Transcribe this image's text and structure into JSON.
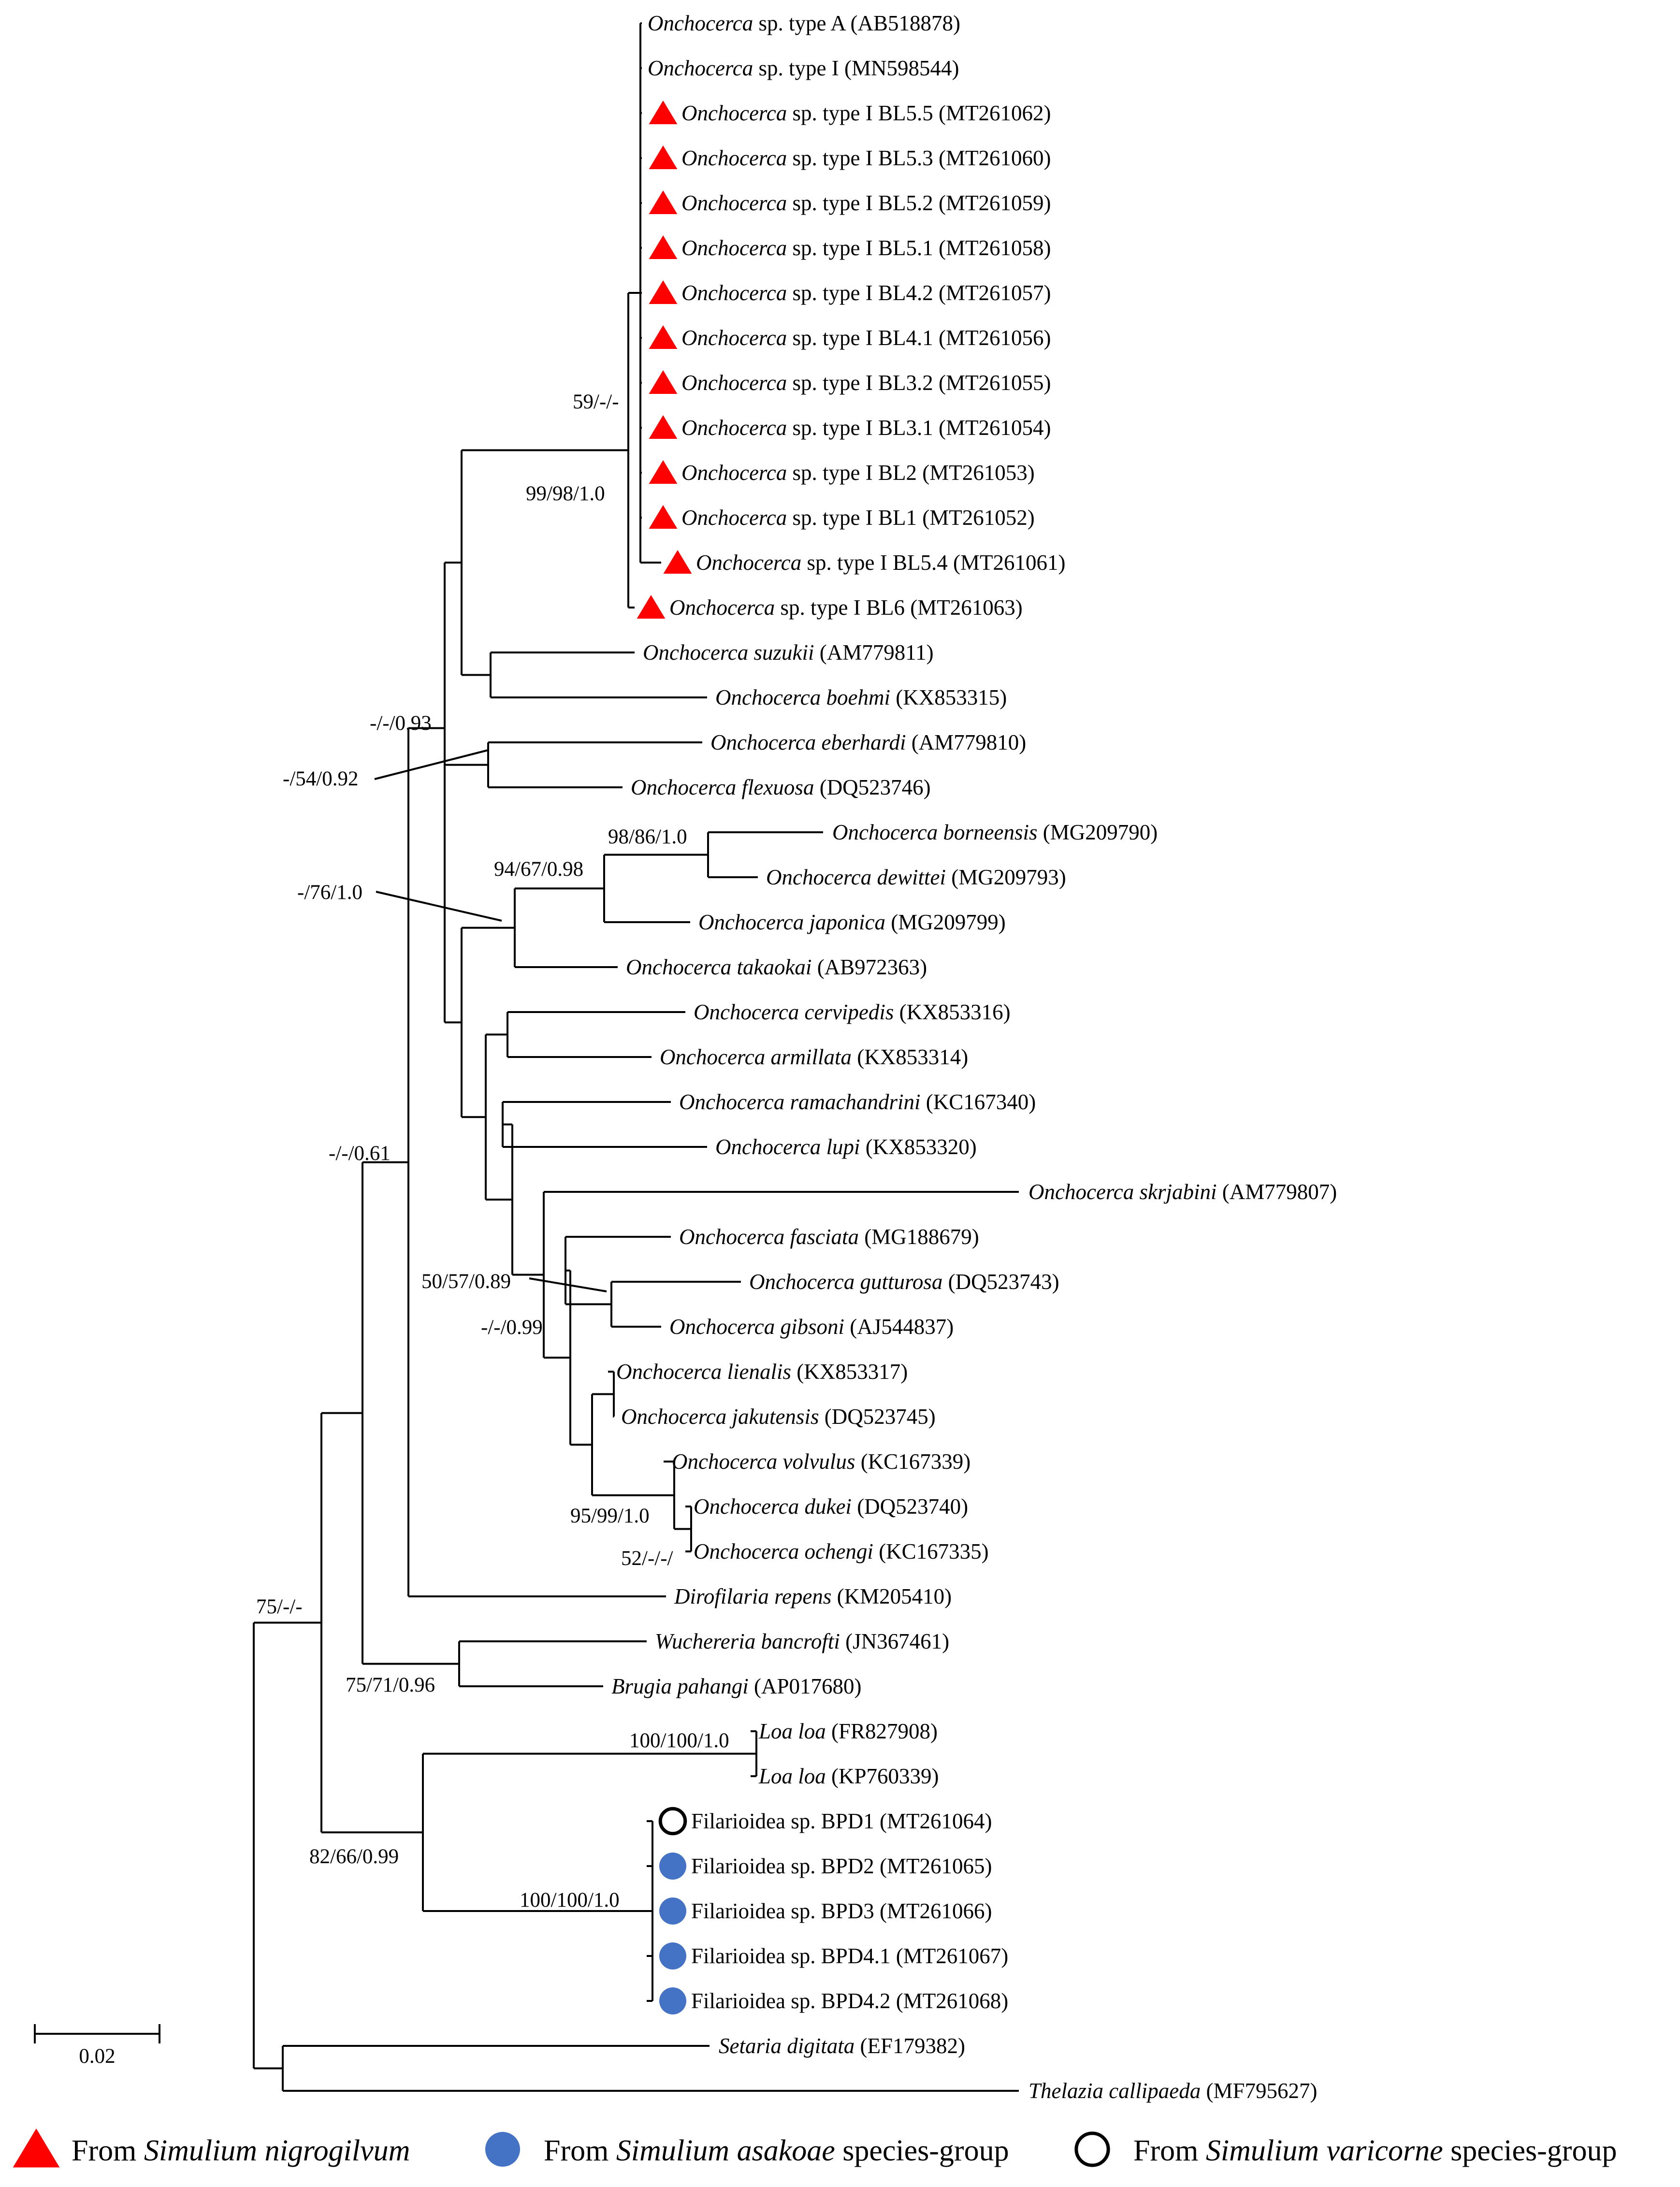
{
  "figure": {
    "kind": "phylogenetic tree",
    "scale_bar_label": "0.02"
  },
  "markers": {
    "nigrogilvum": {
      "shape": "triangle",
      "color": "#ff0000"
    },
    "asakoae": {
      "shape": "filled-circle",
      "color": "#4472c4"
    },
    "varicorne": {
      "shape": "open-circle",
      "color": "#000000"
    }
  },
  "taxa": [
    {
      "italic": "Onchocerca",
      "rest": " sp. type A (AB518878)"
    },
    {
      "italic": "Onchocerca",
      "rest": " sp. type I (MN598544)"
    },
    {
      "italic": "Onchocerca",
      "rest": " sp. type I BL5.5 (MT261062)",
      "marker": "nigrogilvum"
    },
    {
      "italic": "Onchocerca",
      "rest": " sp. type I BL5.3 (MT261060)",
      "marker": "nigrogilvum"
    },
    {
      "italic": "Onchocerca",
      "rest": " sp. type I BL5.2 (MT261059)",
      "marker": "nigrogilvum"
    },
    {
      "italic": "Onchocerca",
      "rest": " sp. type I BL5.1 (MT261058)",
      "marker": "nigrogilvum"
    },
    {
      "italic": "Onchocerca",
      "rest": " sp. type I BL4.2 (MT261057)",
      "marker": "nigrogilvum"
    },
    {
      "italic": "Onchocerca",
      "rest": " sp. type I BL4.1 (MT261056)",
      "marker": "nigrogilvum"
    },
    {
      "italic": "Onchocerca",
      "rest": " sp. type I BL3.2 (MT261055)",
      "marker": "nigrogilvum"
    },
    {
      "italic": "Onchocerca",
      "rest": " sp. type I BL3.1 (MT261054)",
      "marker": "nigrogilvum"
    },
    {
      "italic": "Onchocerca",
      "rest": " sp. type I BL2 (MT261053)",
      "marker": "nigrogilvum"
    },
    {
      "italic": "Onchocerca",
      "rest": " sp. type I BL1 (MT261052)",
      "marker": "nigrogilvum"
    },
    {
      "italic": "Onchocerca",
      "rest": " sp. type I BL5.4 (MT261061)",
      "marker": "nigrogilvum"
    },
    {
      "italic": "Onchocerca",
      "rest": " sp. type I BL6 (MT261063)",
      "marker": "nigrogilvum"
    },
    {
      "italic": "Onchocerca suzukii",
      "rest": " (AM779811)"
    },
    {
      "italic": "Onchocerca boehmi",
      "rest": " (KX853315)"
    },
    {
      "italic": "Onchocerca eberhardi",
      "rest": " (AM779810)"
    },
    {
      "italic": "Onchocerca flexuosa",
      "rest": " (DQ523746)"
    },
    {
      "italic": "Onchocerca borneensis",
      "rest": " (MG209790)"
    },
    {
      "italic": "Onchocerca dewittei",
      "rest": " (MG209793)"
    },
    {
      "italic": "Onchocerca japonica",
      "rest": " (MG209799)"
    },
    {
      "italic": "Onchocerca takaokai",
      "rest": " (AB972363)"
    },
    {
      "italic": "Onchocerca cervipedis",
      "rest": " (KX853316)"
    },
    {
      "italic": "Onchocerca armillata",
      "rest": " (KX853314)"
    },
    {
      "italic": "Onchocerca ramachandrini",
      "rest": " (KC167340)"
    },
    {
      "italic": "Onchocerca lupi",
      "rest": " (KX853320)"
    },
    {
      "italic": "Onchocerca skrjabini",
      "rest": " (AM779807)"
    },
    {
      "italic": "Onchocerca fasciata",
      "rest": " (MG188679)"
    },
    {
      "italic": "Onchocerca gutturosa",
      "rest": " (DQ523743)"
    },
    {
      "italic": "Onchocerca gibsoni",
      "rest": " (AJ544837)"
    },
    {
      "italic": "Onchocerca lienalis",
      "rest": " (KX853317)"
    },
    {
      "italic": "Onchocerca jakutensis",
      "rest": " (DQ523745)"
    },
    {
      "italic": "Onchocerca volvulus",
      "rest": " (KC167339)"
    },
    {
      "italic": "Onchocerca dukei",
      "rest": " (DQ523740)"
    },
    {
      "italic": "Onchocerca ochengi",
      "rest": " (KC167335)"
    },
    {
      "italic": "Dirofilaria repens",
      "rest": " (KM205410)"
    },
    {
      "italic": "Wuchereria bancrofti",
      "rest": " (JN367461)"
    },
    {
      "italic": "Brugia pahangi",
      "rest": " (AP017680)"
    },
    {
      "italic": "Loa loa",
      "rest": " (FR827908)"
    },
    {
      "italic": "Loa loa",
      "rest": " (KP760339)"
    },
    {
      "italic": "",
      "rest": "Filarioidea sp. BPD1 (MT261064)",
      "marker": "varicorne"
    },
    {
      "italic": "",
      "rest": "Filarioidea sp. BPD2 (MT261065)",
      "marker": "asakoae"
    },
    {
      "italic": "",
      "rest": "Filarioidea sp. BPD3 (MT261066)",
      "marker": "asakoae"
    },
    {
      "italic": "",
      "rest": "Filarioidea sp. BPD4.1 (MT261067)",
      "marker": "asakoae"
    },
    {
      "italic": "",
      "rest": "Filarioidea sp. BPD4.2 (MT261068)",
      "marker": "asakoae"
    },
    {
      "italic": "Setaria digitata",
      "rest": " (EF179382)"
    },
    {
      "italic": "Thelazia callipaeda",
      "rest": " (MF795627)"
    }
  ],
  "support_values": [
    "59/-/-",
    "99/98/1.0",
    "-/-/0.93",
    "-/54/0.92",
    "98/86/1.0",
    "94/67/0.98",
    "-/76/1.0",
    "-/-/0.61",
    "50/57/0.89",
    "-/-/0.99",
    "95/99/1.0",
    "52/-/-/",
    "75/-/-",
    "75/71/0.96",
    "100/100/1.0",
    "82/66/0.99",
    "100/100/1.0"
  ],
  "legend": [
    {
      "marker": "nigrogilvum",
      "prefix": "From ",
      "italic": "Simulium nigrogilvum",
      "suffix": ""
    },
    {
      "marker": "asakoae",
      "prefix": "From ",
      "italic": "Simulium asakoae",
      "suffix": " species-group"
    },
    {
      "marker": "varicorne",
      "prefix": "From ",
      "italic": "Simulium varicorne",
      "suffix": " species-group"
    }
  ]
}
